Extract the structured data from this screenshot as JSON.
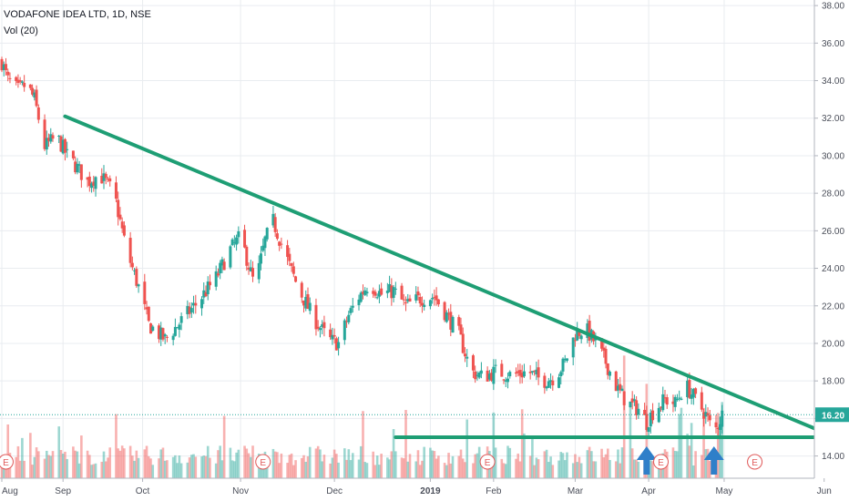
{
  "header": {
    "title": "VODAFONE IDEA LTD, 1D, NSE",
    "vol_label": "Vol (20)"
  },
  "colors": {
    "up": "#26a69a",
    "down": "#ef5350",
    "trend": "#1e9e74",
    "arrow": "#2f7fc9",
    "grid": "#e9ecf0",
    "price_badge": "#26a69a",
    "earn": "#e05a5a"
  },
  "chart_data": {
    "type": "candlestick",
    "title": "VODAFONE IDEA LTD, 1D, NSE",
    "y_ticks": [
      "14.00",
      "16.00",
      "18.00",
      "20.00",
      "22.00",
      "24.00",
      "26.00",
      "28.00",
      "30.00",
      "32.00",
      "34.00",
      "36.00",
      "38.00"
    ],
    "ylim": [
      13.3,
      38.2
    ],
    "x_ticks": [
      "Aug",
      "Sep",
      "Oct",
      "Nov",
      "Dec",
      "2019",
      "Feb",
      "Mar",
      "Apr",
      "May",
      "Jun"
    ],
    "x_tick_days": [
      0,
      30,
      69,
      117,
      163,
      210,
      241,
      281,
      317,
      354,
      403
    ],
    "last_price": "16.20",
    "earnings_label": "E",
    "earnings_days": [
      2,
      128,
      238,
      323,
      369
    ],
    "grid": true,
    "trendlines": [
      {
        "name": "descending resistance",
        "from": {
          "day": 31,
          "price": 32.1
        },
        "to": {
          "day": 413,
          "price": 14.8
        }
      },
      {
        "name": "horizontal support",
        "from": {
          "day": 193,
          "price": 15.0
        },
        "to": {
          "day": 413,
          "price": 15.0
        }
      }
    ],
    "arrows": [
      {
        "day": 316,
        "direction": "up"
      },
      {
        "day": 349,
        "direction": "up"
      }
    ],
    "anchors": [
      {
        "day": 0,
        "price": 35.0
      },
      {
        "day": 3,
        "price": 34.0
      },
      {
        "day": 8,
        "price": 33.5
      },
      {
        "day": 12,
        "price": 33.8
      },
      {
        "day": 16,
        "price": 33.0
      },
      {
        "day": 21,
        "price": 30.5
      },
      {
        "day": 27,
        "price": 31.0
      },
      {
        "day": 32,
        "price": 30.0
      },
      {
        "day": 36,
        "price": 29.5
      },
      {
        "day": 42,
        "price": 28.6
      },
      {
        "day": 48,
        "price": 29.0
      },
      {
        "day": 55,
        "price": 28.0
      },
      {
        "day": 61,
        "price": 25.0
      },
      {
        "day": 67,
        "price": 23.0
      },
      {
        "day": 72,
        "price": 21.0
      },
      {
        "day": 80,
        "price": 20.2
      },
      {
        "day": 88,
        "price": 21.2
      },
      {
        "day": 96,
        "price": 22.2
      },
      {
        "day": 105,
        "price": 23.5
      },
      {
        "day": 112,
        "price": 25.0
      },
      {
        "day": 117,
        "price": 25.7
      },
      {
        "day": 124,
        "price": 23.0
      },
      {
        "day": 129,
        "price": 25.5
      },
      {
        "day": 133,
        "price": 26.5
      },
      {
        "day": 138,
        "price": 25.0
      },
      {
        "day": 145,
        "price": 23.0
      },
      {
        "day": 152,
        "price": 21.5
      },
      {
        "day": 160,
        "price": 20.2
      },
      {
        "day": 165,
        "price": 20.0
      },
      {
        "day": 170,
        "price": 21.5
      },
      {
        "day": 175,
        "price": 22.5
      },
      {
        "day": 180,
        "price": 23.2
      },
      {
        "day": 186,
        "price": 22.6
      },
      {
        "day": 192,
        "price": 22.8
      },
      {
        "day": 198,
        "price": 22.0
      },
      {
        "day": 205,
        "price": 22.4
      },
      {
        "day": 212,
        "price": 22.5
      },
      {
        "day": 218,
        "price": 21.5
      },
      {
        "day": 224,
        "price": 20.5
      },
      {
        "day": 230,
        "price": 18.5
      },
      {
        "day": 236,
        "price": 18.2
      },
      {
        "day": 242,
        "price": 18.5
      },
      {
        "day": 250,
        "price": 18.3
      },
      {
        "day": 258,
        "price": 18.5
      },
      {
        "day": 265,
        "price": 18.0
      },
      {
        "day": 271,
        "price": 18.2
      },
      {
        "day": 276,
        "price": 19.0
      },
      {
        "day": 281,
        "price": 20.5
      },
      {
        "day": 286,
        "price": 20.8
      },
      {
        "day": 291,
        "price": 20.0
      },
      {
        "day": 296,
        "price": 19.0
      },
      {
        "day": 302,
        "price": 17.5
      },
      {
        "day": 307,
        "price": 16.8
      },
      {
        "day": 312,
        "price": 16.5
      },
      {
        "day": 316,
        "price": 15.8
      },
      {
        "day": 320,
        "price": 16.5
      },
      {
        "day": 325,
        "price": 17.0
      },
      {
        "day": 330,
        "price": 16.8
      },
      {
        "day": 335,
        "price": 17.8
      },
      {
        "day": 340,
        "price": 17.0
      },
      {
        "day": 345,
        "price": 16.2
      },
      {
        "day": 349,
        "price": 15.2
      },
      {
        "day": 353,
        "price": 16.2
      }
    ]
  }
}
